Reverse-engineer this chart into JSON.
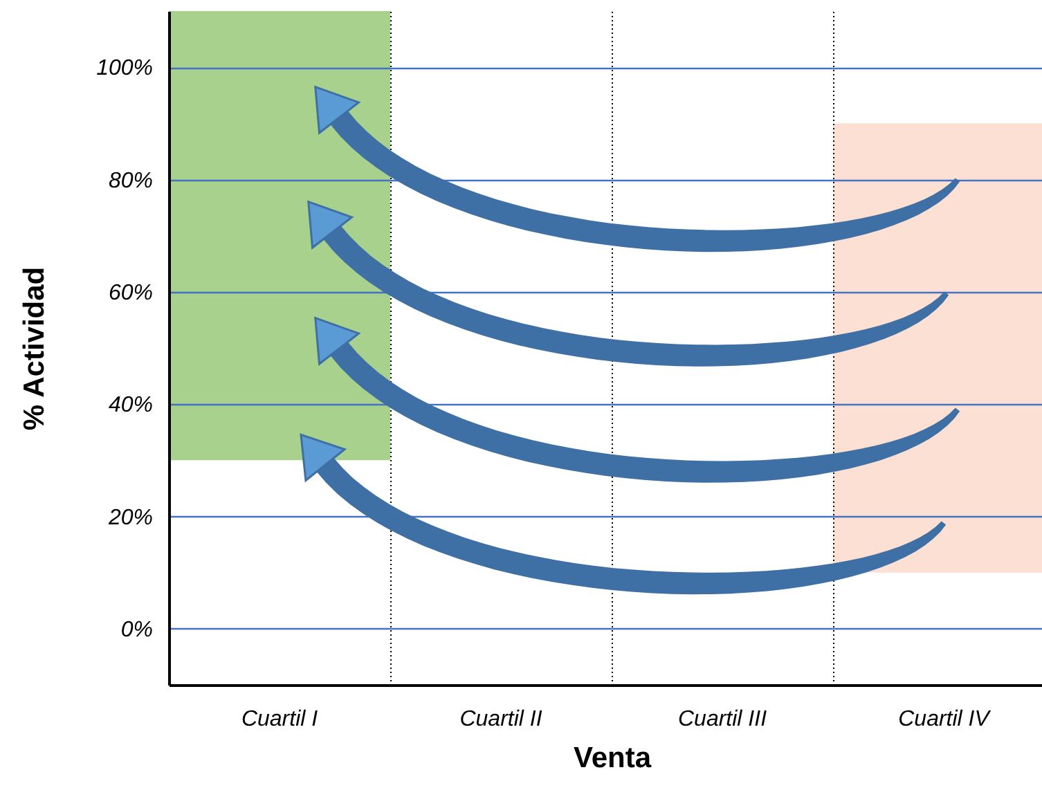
{
  "chart_data": {
    "type": "bar",
    "xlabel": "Venta",
    "ylabel": "% Actividad",
    "categories": [
      "Cuartil I",
      "Cuartil II",
      "Cuartil III",
      "Cuartil IV"
    ],
    "values": [
      80,
      null,
      null,
      80
    ],
    "base": [
      30,
      null,
      null,
      10
    ],
    "colors": [
      "#a9d18e",
      "#ffffff",
      "#ffffff",
      "#fbe0d3"
    ],
    "ylim": [
      -10,
      110
    ],
    "yticks": [
      {
        "value": 0,
        "label": "0%"
      },
      {
        "value": 20,
        "label": "20%"
      },
      {
        "value": 40,
        "label": "40%"
      },
      {
        "value": 60,
        "label": "60%"
      },
      {
        "value": 80,
        "label": "80%"
      },
      {
        "value": 100,
        "label": "100%"
      }
    ],
    "grid": true
  }
}
